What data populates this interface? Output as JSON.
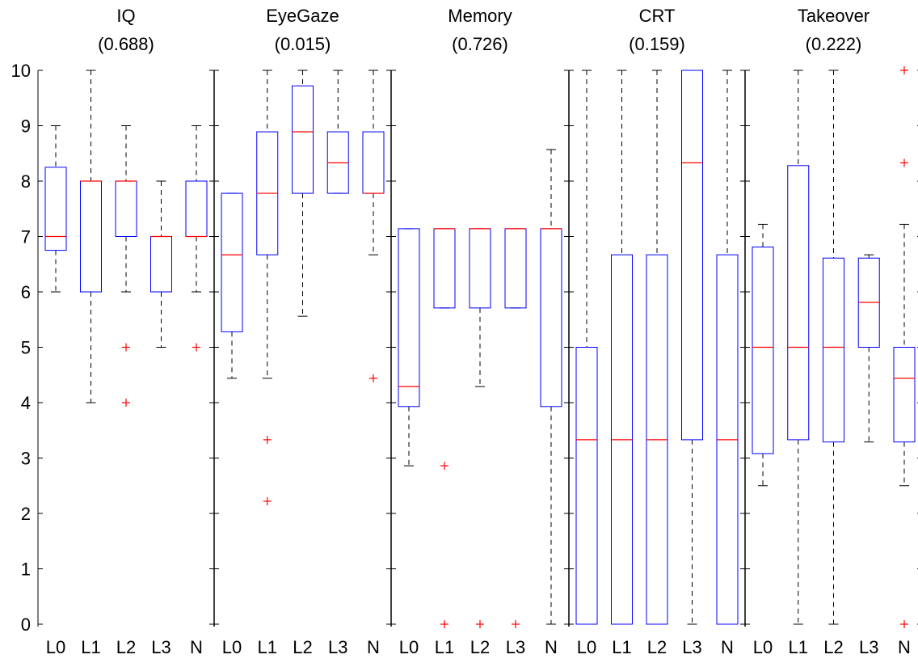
{
  "chart_data": {
    "type": "box",
    "ylim": [
      0,
      10
    ],
    "yticks": [
      "0",
      "1",
      "2",
      "3",
      "4",
      "5",
      "6",
      "7",
      "8",
      "9",
      "10"
    ],
    "categories": [
      "L0",
      "L1",
      "L2",
      "L3",
      "N"
    ],
    "grid": false,
    "colors": {
      "box": "#0000ff",
      "median": "#ff0000",
      "whisker": "#000000",
      "outlier": "#ff0000",
      "axis": "#000000"
    },
    "panels": [
      {
        "title": "IQ",
        "subtitle": "(0.688)",
        "boxes": [
          {
            "category": "L0",
            "min": 6,
            "q1": 6.75,
            "median": 7,
            "q3": 8.25,
            "max": 9,
            "outliers": []
          },
          {
            "category": "L1",
            "min": 4,
            "q1": 6,
            "median": 8,
            "q3": 8,
            "max": 10,
            "outliers": []
          },
          {
            "category": "L2",
            "min": 6,
            "q1": 7,
            "median": 8,
            "q3": 8,
            "max": 9,
            "outliers": [
              5,
              4
            ]
          },
          {
            "category": "L3",
            "min": 5,
            "q1": 6,
            "median": 7,
            "q3": 7,
            "max": 8,
            "outliers": []
          },
          {
            "category": "N",
            "min": 6,
            "q1": 7,
            "median": 7,
            "q3": 8,
            "max": 9,
            "outliers": [
              5
            ]
          }
        ]
      },
      {
        "title": "EyeGaze",
        "subtitle": "(0.015)",
        "boxes": [
          {
            "category": "L0",
            "min": 4.44,
            "q1": 5.28,
            "median": 6.67,
            "q3": 7.78,
            "max": 7.78,
            "outliers": []
          },
          {
            "category": "L1",
            "min": 4.44,
            "q1": 6.67,
            "median": 7.78,
            "q3": 8.89,
            "max": 10,
            "outliers": [
              3.33,
              2.22
            ]
          },
          {
            "category": "L2",
            "min": 5.56,
            "q1": 7.78,
            "median": 8.89,
            "q3": 9.72,
            "max": 10,
            "outliers": []
          },
          {
            "category": "L3",
            "min": 7.78,
            "q1": 7.78,
            "median": 8.33,
            "q3": 8.89,
            "max": 10,
            "outliers": []
          },
          {
            "category": "N",
            "min": 6.67,
            "q1": 7.78,
            "median": 7.78,
            "q3": 8.89,
            "max": 10,
            "outliers": [
              4.44
            ]
          }
        ]
      },
      {
        "title": "Memory",
        "subtitle": "(0.726)",
        "boxes": [
          {
            "category": "L0",
            "min": 2.86,
            "q1": 3.93,
            "median": 4.29,
            "q3": 7.14,
            "max": 7.14,
            "outliers": []
          },
          {
            "category": "L1",
            "min": 5.71,
            "q1": 5.71,
            "median": 7.14,
            "q3": 7.14,
            "max": 7.14,
            "outliers": [
              2.86,
              0
            ]
          },
          {
            "category": "L2",
            "min": 4.29,
            "q1": 5.71,
            "median": 7.14,
            "q3": 7.14,
            "max": 7.14,
            "outliers": [
              0
            ]
          },
          {
            "category": "L3",
            "min": 5.71,
            "q1": 5.71,
            "median": 7.14,
            "q3": 7.14,
            "max": 7.14,
            "outliers": [
              0
            ]
          },
          {
            "category": "N",
            "min": 0,
            "q1": 3.93,
            "median": 7.14,
            "q3": 7.14,
            "max": 8.57,
            "outliers": []
          }
        ]
      },
      {
        "title": "CRT",
        "subtitle": "(0.159)",
        "boxes": [
          {
            "category": "L0",
            "min": 0,
            "q1": 0,
            "median": 3.33,
            "q3": 5,
            "max": 10,
            "outliers": []
          },
          {
            "category": "L1",
            "min": 0,
            "q1": 0,
            "median": 3.33,
            "q3": 6.67,
            "max": 10,
            "outliers": []
          },
          {
            "category": "L2",
            "min": 0,
            "q1": 0,
            "median": 3.33,
            "q3": 6.67,
            "max": 10,
            "outliers": []
          },
          {
            "category": "L3",
            "min": 0,
            "q1": 3.33,
            "median": 8.33,
            "q3": 10,
            "max": 10,
            "outliers": []
          },
          {
            "category": "N",
            "min": 0,
            "q1": 0,
            "median": 3.33,
            "q3": 6.67,
            "max": 10,
            "outliers": []
          }
        ]
      },
      {
        "title": "Takeover",
        "subtitle": "(0.222)",
        "boxes": [
          {
            "category": "L0",
            "min": 2.5,
            "q1": 3.08,
            "median": 5,
            "q3": 6.81,
            "max": 7.22,
            "outliers": []
          },
          {
            "category": "L1",
            "min": 0,
            "q1": 3.33,
            "median": 5,
            "q3": 8.28,
            "max": 10,
            "outliers": []
          },
          {
            "category": "L2",
            "min": 0,
            "q1": 3.29,
            "median": 5,
            "q3": 6.61,
            "max": 10,
            "outliers": []
          },
          {
            "category": "L3",
            "min": 3.29,
            "q1": 5,
            "median": 5.81,
            "q3": 6.61,
            "max": 6.67,
            "outliers": []
          },
          {
            "category": "N",
            "min": 2.5,
            "q1": 3.29,
            "median": 4.44,
            "q3": 5,
            "max": 7.22,
            "outliers": [
              10,
              8.33,
              0
            ]
          }
        ]
      }
    ]
  }
}
